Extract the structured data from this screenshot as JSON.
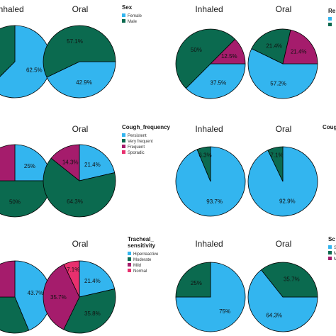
{
  "colors": {
    "light_blue": "#33b5ef",
    "dark_green": "#0b6a4f",
    "magenta": "#a51c6c",
    "pink": "#e8306e",
    "slice_border": "#000000"
  },
  "chart_data": [
    {
      "type": "pie",
      "panel": "top-left",
      "legend": {
        "title": "Sex",
        "entries": [
          "Female",
          "Male"
        ]
      },
      "pies": [
        {
          "title": "Inhaled",
          "slices": [
            {
              "category": "Female",
              "value": 62.5,
              "label": "62.5%"
            },
            {
              "category": "Male",
              "value": 37.5,
              "label": ""
            }
          ]
        },
        {
          "title": "Oral",
          "slices": [
            {
              "category": "Female",
              "value": 42.9,
              "label": "42.9%"
            },
            {
              "category": "Male",
              "value": 57.1,
              "label": "57.1%"
            }
          ]
        }
      ]
    },
    {
      "type": "pie",
      "panel": "top-right",
      "legend": {
        "title": "Re",
        "entries": [
          "",
          ""
        ]
      },
      "pies": [
        {
          "title": "Inhaled",
          "slices": [
            {
              "category": "light",
              "value": 37.5,
              "label": "37.5%"
            },
            {
              "category": "dark",
              "value": 50,
              "label": "50%"
            },
            {
              "category": "magenta",
              "value": 12.5,
              "label": "12.5%"
            }
          ]
        },
        {
          "title": "Oral",
          "slices": [
            {
              "category": "light",
              "value": 57.2,
              "label": "57.2%"
            },
            {
              "category": "dark",
              "value": 21.4,
              "label": "21.4%"
            },
            {
              "category": "magenta",
              "value": 21.4,
              "label": "21.4%"
            }
          ]
        }
      ]
    },
    {
      "type": "pie",
      "panel": "middle-left",
      "legend": {
        "title": "Cough_frequency",
        "entries": [
          "Persistent",
          "Very frequent",
          "Frequent",
          "Sporadic"
        ]
      },
      "pies": [
        {
          "title": "",
          "slices": [
            {
              "category": "Persistent",
              "value": 25,
              "label": "25%"
            },
            {
              "category": "Very frequent",
              "value": 50,
              "label": "50%"
            },
            {
              "category": "Frequent",
              "value": 25,
              "label": ""
            }
          ]
        },
        {
          "title": "Oral",
          "slices": [
            {
              "category": "Persistent",
              "value": 21.4,
              "label": "21.4%"
            },
            {
              "category": "Very frequent",
              "value": 64.3,
              "label": "64.3%"
            },
            {
              "category": "Frequent",
              "value": 14.3,
              "label": "14.3%"
            }
          ]
        }
      ]
    },
    {
      "type": "pie",
      "panel": "middle-right",
      "legend": {
        "title": "Coug",
        "entries": []
      },
      "pies": [
        {
          "title": "Inhaled",
          "slices": [
            {
              "category": "light",
              "value": 93.7,
              "label": "93.7%"
            },
            {
              "category": "dark",
              "value": 6.3,
              "label": "6.3%"
            }
          ]
        },
        {
          "title": "Oral",
          "slices": [
            {
              "category": "light",
              "value": 92.9,
              "label": "92.9%"
            },
            {
              "category": "dark",
              "value": 7.1,
              "label": "7.1%"
            }
          ]
        }
      ]
    },
    {
      "type": "pie",
      "panel": "bottom-left",
      "legend": {
        "title": "Tracheal_ sensitivity",
        "entries": [
          "Hiperreactive",
          "Moderate",
          "Mild",
          "Normal"
        ]
      },
      "pies": [
        {
          "title": "",
          "slices": [
            {
              "category": "Hiperreactive",
              "value": 43.7,
              "label": "43.7%"
            },
            {
              "category": "Moderate",
              "value": 31.3,
              "label": ""
            },
            {
              "category": "Mild",
              "value": 25,
              "label": ""
            }
          ]
        },
        {
          "title": "Oral",
          "slices": [
            {
              "category": "Hiperreactive",
              "value": 21.4,
              "label": "21.4%"
            },
            {
              "category": "Moderate",
              "value": 35.8,
              "label": "35.8%"
            },
            {
              "category": "Mild",
              "value": 35.7,
              "label": "35.7%"
            },
            {
              "category": "Normal",
              "value": 7.1,
              "label": "7.1%"
            }
          ]
        }
      ]
    },
    {
      "type": "pie",
      "panel": "bottom-right",
      "legend": {
        "title": "Sc",
        "entries": [
          "Sev",
          "Mo",
          "Mil"
        ]
      },
      "pies": [
        {
          "title": "Inhaled",
          "slices": [
            {
              "category": "light",
              "value": 75,
              "label": "75%"
            },
            {
              "category": "dark",
              "value": 25,
              "label": "25%"
            }
          ]
        },
        {
          "title": "Oral",
          "slices": [
            {
              "category": "light",
              "value": 64.3,
              "label": "64.3%"
            },
            {
              "category": "dark",
              "value": 35.7,
              "label": "35.7%"
            }
          ]
        }
      ]
    }
  ]
}
